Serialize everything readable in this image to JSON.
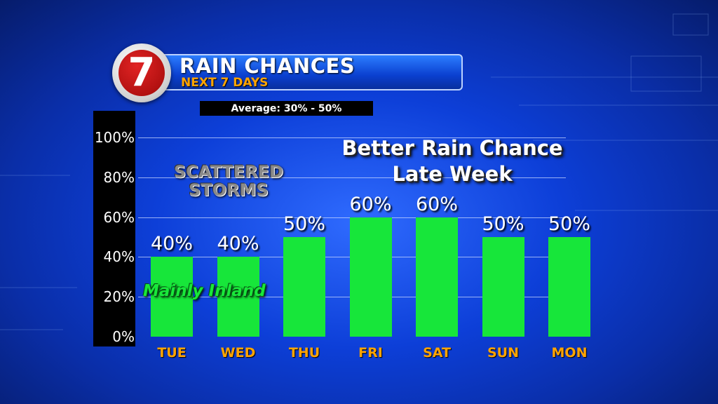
{
  "header": {
    "logo_text": "7",
    "title": "RAIN CHANCES",
    "subtitle": "NEXT 7 DAYS",
    "average": "Average: 30% - 50%"
  },
  "annotations": {
    "scattered_storms": [
      "SCATTERED",
      "STORMS"
    ],
    "better_rain": [
      "Better Rain Chance",
      "Late Week"
    ],
    "mainly_inland": "Mainly Inland"
  },
  "colors": {
    "bar": "#17e63a",
    "day_label": "#ffa400",
    "background": "#0d3fd8"
  },
  "chart_data": {
    "type": "bar",
    "categories": [
      "TUE",
      "WED",
      "THU",
      "FRI",
      "SAT",
      "SUN",
      "MON"
    ],
    "values": [
      40,
      40,
      50,
      60,
      60,
      50,
      50
    ],
    "value_labels": [
      "40%",
      "40%",
      "50%",
      "60%",
      "60%",
      "50%",
      "50%"
    ],
    "yticks": [
      "0%",
      "20%",
      "40%",
      "60%",
      "80%",
      "100%"
    ],
    "ytick_values": [
      0,
      20,
      40,
      60,
      80,
      100
    ],
    "ylim": [
      0,
      100
    ],
    "grid": true
  }
}
